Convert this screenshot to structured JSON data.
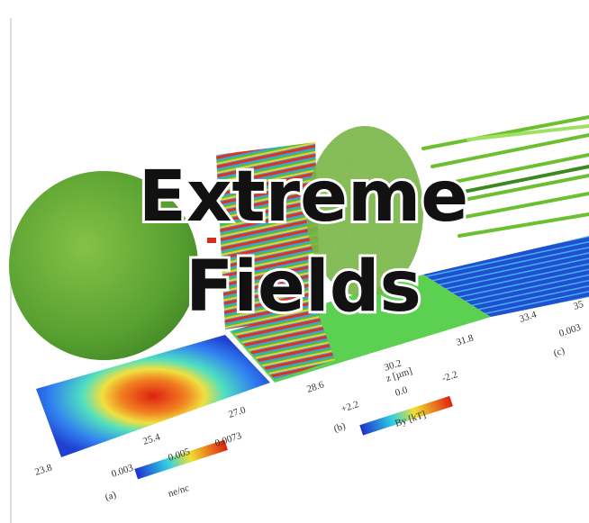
{
  "title": {
    "lines": [
      "Extreme",
      "Fields"
    ]
  },
  "figure": {
    "axis_ticks": [
      "23.8",
      "25.4",
      "27.0",
      "28.6",
      "30.2",
      "31.8",
      "33.4",
      "35"
    ],
    "axis_label": "z [µm]",
    "panels": [
      {
        "label": "(a)",
        "colorbar": {
          "ticks": [
            "0.003",
            "0.005",
            "0.0073"
          ],
          "label": "ne/nc"
        }
      },
      {
        "label": "(b)",
        "colorbar": {
          "ticks": [
            "+2.2",
            "0.0",
            "-2.2"
          ],
          "label": "By [kT]"
        }
      },
      {
        "label": "(c)",
        "colorbar": {
          "ticks": [
            "0.003"
          ]
        }
      }
    ]
  }
}
